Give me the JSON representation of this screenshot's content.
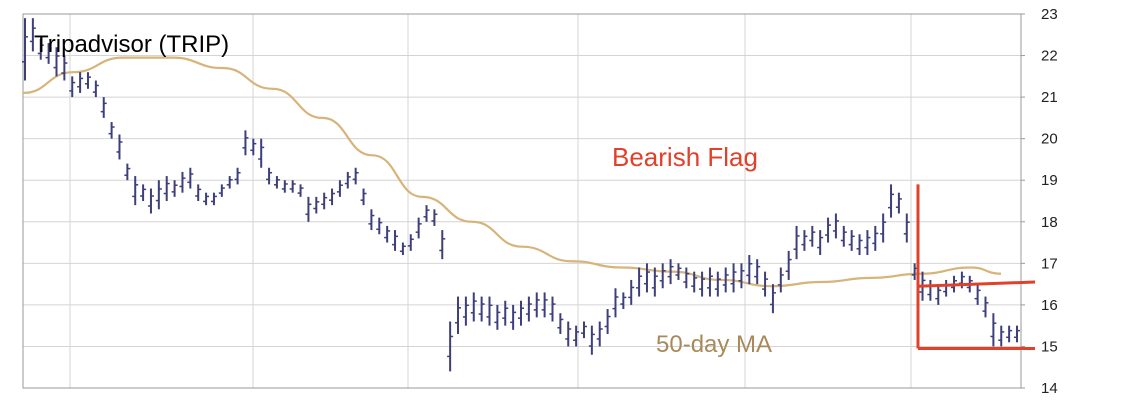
{
  "chart_data": {
    "type": "line",
    "title": "Tripadvisor (TRIP)",
    "yticks": [
      "14",
      "15",
      "16",
      "17",
      "18",
      "19",
      "20",
      "21",
      "22",
      "23"
    ],
    "ylim": [
      14,
      23
    ],
    "grid": true,
    "annotations": {
      "flag": "Bearish Flag",
      "ma": "50-day MA"
    },
    "colors": {
      "bars": "#3d3f7a",
      "ma": "#d6b47a",
      "flag": "#e0412b",
      "ma_label": "#a88a5a",
      "grid": "#d4d4d4",
      "axis": "#999999"
    },
    "series": [
      {
        "type": "ohlc-bars",
        "values": [
          [
            21.4,
            22.9
          ],
          [
            22.1,
            22.9
          ],
          [
            21.9,
            22.4
          ],
          [
            21.8,
            22.3
          ],
          [
            21.5,
            22.2
          ],
          [
            21.4,
            22.0
          ],
          [
            21.0,
            21.5
          ],
          [
            21.1,
            21.6
          ],
          [
            21.2,
            21.6
          ],
          [
            21.0,
            21.4
          ],
          [
            20.5,
            21.0
          ],
          [
            20.0,
            20.4
          ],
          [
            19.5,
            20.1
          ],
          [
            19.0,
            19.4
          ],
          [
            18.4,
            19.1
          ],
          [
            18.5,
            18.9
          ],
          [
            18.2,
            18.8
          ],
          [
            18.3,
            19.0
          ],
          [
            18.5,
            19.1
          ],
          [
            18.6,
            19.0
          ],
          [
            18.7,
            19.2
          ],
          [
            18.8,
            19.3
          ],
          [
            18.5,
            18.9
          ],
          [
            18.4,
            18.7
          ],
          [
            18.4,
            18.7
          ],
          [
            18.6,
            18.9
          ],
          [
            18.8,
            19.1
          ],
          [
            18.9,
            19.3
          ],
          [
            19.6,
            20.2
          ],
          [
            19.6,
            20.0
          ],
          [
            19.3,
            20.0
          ],
          [
            18.9,
            19.3
          ],
          [
            18.8,
            19.1
          ],
          [
            18.7,
            19.0
          ],
          [
            18.7,
            19.0
          ],
          [
            18.6,
            18.9
          ],
          [
            18.0,
            18.6
          ],
          [
            18.2,
            18.6
          ],
          [
            18.3,
            18.7
          ],
          [
            18.4,
            18.8
          ],
          [
            18.6,
            19.0
          ],
          [
            18.8,
            19.2
          ],
          [
            18.9,
            19.3
          ],
          [
            18.4,
            18.8
          ],
          [
            17.8,
            18.3
          ],
          [
            17.7,
            18.1
          ],
          [
            17.5,
            17.9
          ],
          [
            17.3,
            17.8
          ],
          [
            17.2,
            17.5
          ],
          [
            17.3,
            17.7
          ],
          [
            17.6,
            18.1
          ],
          [
            18.0,
            18.4
          ],
          [
            17.9,
            18.3
          ],
          [
            17.1,
            17.8
          ],
          [
            14.4,
            15.6
          ],
          [
            15.3,
            16.2
          ],
          [
            15.5,
            16.2
          ],
          [
            15.6,
            16.3
          ],
          [
            15.6,
            16.2
          ],
          [
            15.5,
            16.2
          ],
          [
            15.4,
            16.0
          ],
          [
            15.5,
            16.1
          ],
          [
            15.4,
            16.0
          ],
          [
            15.5,
            16.1
          ],
          [
            15.6,
            16.2
          ],
          [
            15.7,
            16.3
          ],
          [
            15.7,
            16.3
          ],
          [
            15.6,
            16.2
          ],
          [
            15.3,
            15.8
          ],
          [
            15.0,
            15.6
          ],
          [
            15.0,
            15.5
          ],
          [
            15.2,
            15.6
          ],
          [
            14.8,
            15.5
          ],
          [
            15.0,
            15.6
          ],
          [
            15.3,
            15.9
          ],
          [
            15.7,
            16.4
          ],
          [
            15.9,
            16.3
          ],
          [
            16.0,
            16.6
          ],
          [
            16.2,
            16.9
          ],
          [
            16.3,
            17.0
          ],
          [
            16.2,
            16.9
          ],
          [
            16.4,
            17.0
          ],
          [
            16.5,
            17.1
          ],
          [
            16.6,
            17.0
          ],
          [
            16.4,
            16.9
          ],
          [
            16.3,
            16.8
          ],
          [
            16.2,
            16.8
          ],
          [
            16.2,
            16.9
          ],
          [
            16.2,
            16.8
          ],
          [
            16.3,
            16.9
          ],
          [
            16.3,
            17.0
          ],
          [
            16.4,
            17.0
          ],
          [
            16.5,
            17.2
          ],
          [
            16.5,
            17.1
          ],
          [
            16.2,
            16.8
          ],
          [
            15.8,
            16.5
          ],
          [
            16.3,
            16.9
          ],
          [
            16.6,
            17.3
          ],
          [
            17.1,
            17.9
          ],
          [
            17.3,
            17.8
          ],
          [
            17.4,
            17.9
          ],
          [
            17.2,
            17.8
          ],
          [
            17.5,
            18.1
          ],
          [
            17.6,
            18.2
          ],
          [
            17.4,
            17.9
          ],
          [
            17.3,
            17.8
          ],
          [
            17.2,
            17.7
          ],
          [
            17.2,
            17.8
          ],
          [
            17.3,
            17.9
          ],
          [
            17.5,
            18.2
          ],
          [
            18.1,
            18.9
          ],
          [
            18.2,
            18.7
          ],
          [
            17.5,
            18.2
          ],
          [
            16.6,
            17.0
          ],
          [
            16.1,
            16.8
          ],
          [
            16.1,
            16.6
          ],
          [
            16.0,
            16.5
          ],
          [
            16.2,
            16.6
          ],
          [
            16.3,
            16.7
          ],
          [
            16.4,
            16.8
          ],
          [
            16.3,
            16.7
          ],
          [
            16.0,
            16.5
          ],
          [
            15.7,
            16.2
          ],
          [
            15.0,
            15.8
          ],
          [
            15.0,
            15.5
          ],
          [
            15.1,
            15.5
          ],
          [
            15.1,
            15.5
          ]
        ]
      },
      {
        "name": "50-day MA",
        "type": "line",
        "x": [
          0,
          0.05,
          0.1,
          0.15,
          0.2,
          0.25,
          0.3,
          0.35,
          0.4,
          0.45,
          0.5,
          0.55,
          0.6,
          0.65,
          0.7,
          0.75,
          0.8,
          0.85,
          0.9,
          0.95,
          0.98
        ],
        "values": [
          21.1,
          21.6,
          21.95,
          21.95,
          21.7,
          21.2,
          20.5,
          19.6,
          18.6,
          18.0,
          17.4,
          17.05,
          16.9,
          16.8,
          16.6,
          16.45,
          16.55,
          16.65,
          16.75,
          16.9,
          16.75
        ]
      }
    ]
  }
}
